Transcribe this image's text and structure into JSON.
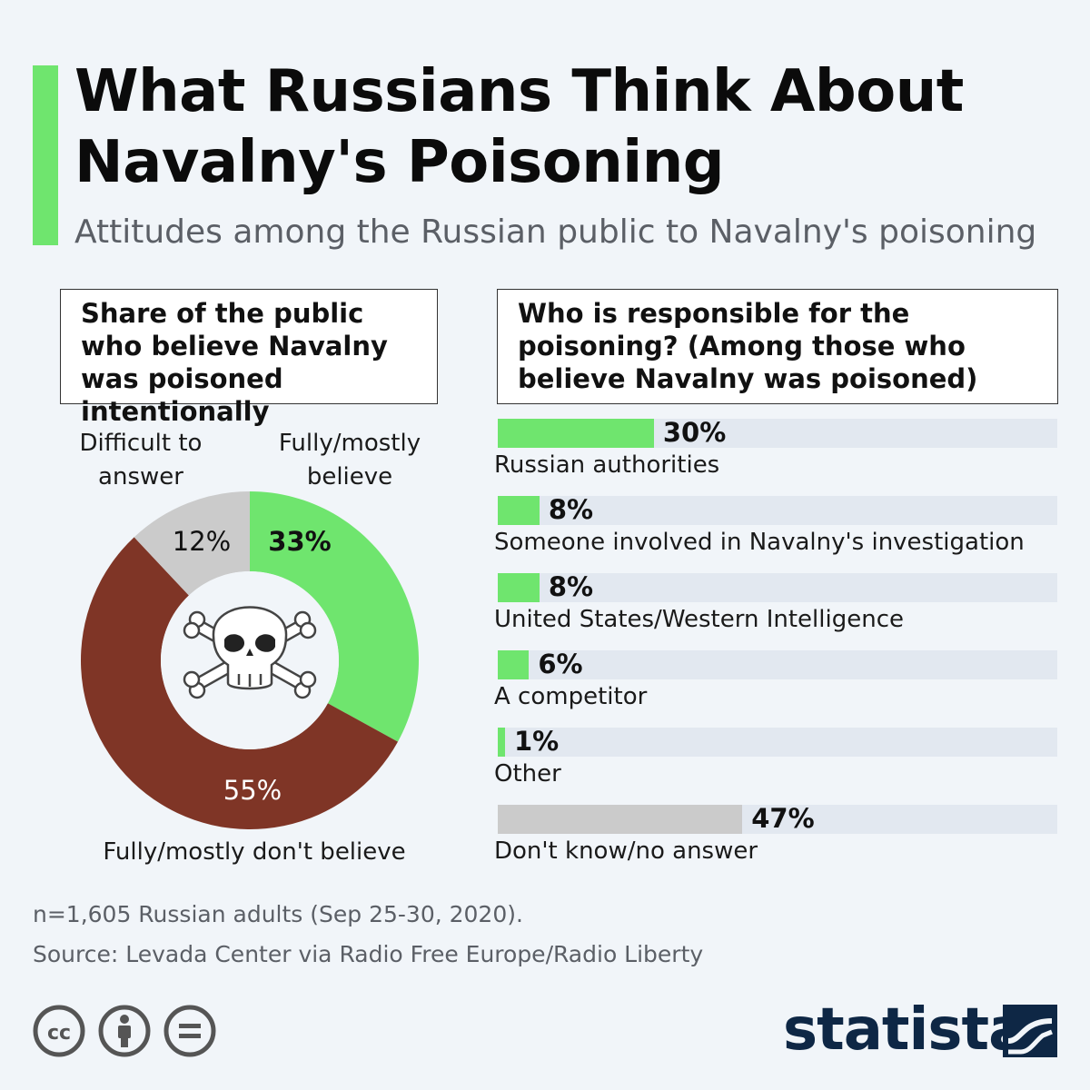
{
  "title": "What Russians Think About Navalny's Poisoning",
  "subtitle": "Attitudes among the Russian public to Navalny's poisoning",
  "colors": {
    "accent": "#6fe56e",
    "dont_believe": "#7f3526",
    "difficult": "#cbcbcb",
    "track": "#e2e8f0",
    "brand": "#0e2745"
  },
  "left_panel": {
    "heading": "Share of the public who believe Navalny was poisoned intentionally",
    "center_icon": "skull-crossbones-icon"
  },
  "right_panel": {
    "heading": "Who is responsible for the poisoning? (Among those who believe Navalny was poisoned)"
  },
  "chart_data": [
    {
      "type": "pie",
      "donut": true,
      "slices": [
        {
          "label": "Fully/mostly believe",
          "value": 33,
          "value_label": "33%",
          "color": "#6fe56e"
        },
        {
          "label": "Fully/mostly don't believe",
          "value": 55,
          "value_label": "55%",
          "color": "#7f3526"
        },
        {
          "label": "Difficult to answer",
          "value": 12,
          "value_label": "12%",
          "color": "#cbcbcb"
        }
      ]
    },
    {
      "type": "bar",
      "orientation": "horizontal",
      "xlim": [
        0,
        100
      ],
      "categories": [
        "Russian authorities",
        "Someone involved in Navalny's investigation",
        "United States/Western Intelligence",
        "A competitor",
        "Other",
        "Don't know/no answer"
      ],
      "values": [
        30,
        8,
        8,
        6,
        1,
        47
      ],
      "value_labels": [
        "30%",
        "8%",
        "8%",
        "6%",
        "1%",
        "47%"
      ],
      "bar_colors": [
        "#6fe56e",
        "#6fe56e",
        "#6fe56e",
        "#6fe56e",
        "#6fe56e",
        "#cbcbcb"
      ]
    }
  ],
  "footer": {
    "note": "n=1,605 Russian adults (Sep 25-30, 2020).",
    "source": "Source: Levada Center via Radio Free Europe/Radio Liberty",
    "license_icons": [
      "cc-icon",
      "attribution-icon",
      "no-derivatives-icon"
    ],
    "brand": "statista"
  }
}
